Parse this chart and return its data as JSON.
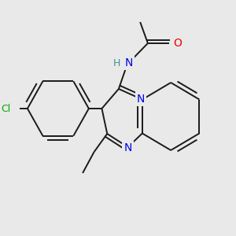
{
  "bg_color": "#e9e9e9",
  "bond_color": "#1a1a1a",
  "bond_width": 1.4,
  "dbo": 0.012,
  "atom_colors": {
    "N": "#0000ee",
    "O": "#ee0000",
    "Cl": "#00aa00",
    "H": "#4a9090",
    "C": "#1a1a1a"
  }
}
